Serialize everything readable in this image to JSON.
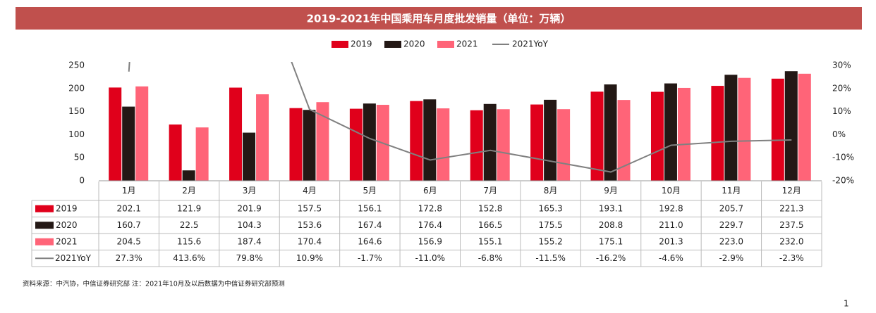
{
  "chart_data": {
    "type": "bar-line-table",
    "title": "2019-2021年中国乘用车月度批发销量（单位：万辆）",
    "categories": [
      "1月",
      "2月",
      "3月",
      "4月",
      "5月",
      "6月",
      "7月",
      "8月",
      "9月",
      "10月",
      "11月",
      "12月"
    ],
    "series": [
      {
        "name": "2019",
        "color": "#e0001b",
        "values": [
          202.1,
          121.9,
          201.9,
          157.5,
          156.1,
          172.8,
          152.8,
          165.3,
          193.1,
          192.8,
          205.7,
          221.3
        ],
        "value_labels": [
          "202.1",
          "121.9",
          "201.9",
          "157.5",
          "156.1",
          "172.8",
          "152.8",
          "165.3",
          "193.1",
          "192.8",
          "205.7",
          "221.3"
        ]
      },
      {
        "name": "2020",
        "color": "#231815",
        "values": [
          160.7,
          22.5,
          104.3,
          153.6,
          167.4,
          176.4,
          166.5,
          175.5,
          208.8,
          211,
          229.7,
          237.5
        ],
        "value_labels": [
          "160.7",
          "22.5",
          "104.3",
          "153.6",
          "167.4",
          "176.4",
          "166.5",
          "175.5",
          "208.8",
          "211.0",
          "229.7",
          "237.5"
        ]
      },
      {
        "name": "2021",
        "color": "#ff6478",
        "values": [
          204.5,
          115.6,
          187.4,
          170.4,
          164.6,
          156.9,
          155.1,
          155.2,
          175.1,
          201.3,
          223,
          232
        ],
        "value_labels": [
          "204.5",
          "115.6",
          "187.4",
          "170.4",
          "164.6",
          "156.9",
          "155.1",
          "155.2",
          "175.1",
          "201.3",
          "223.0",
          "232.0"
        ]
      },
      {
        "name": "2021YoY",
        "color": "#808080",
        "axis": "y2",
        "values": [
          27.3,
          413.6,
          79.8,
          10.9,
          -1.7,
          -11,
          -6.8,
          -11.5,
          -16.2,
          -4.6,
          -2.9,
          -2.3
        ],
        "value_labels": [
          "27.3%",
          "413.6%",
          "79.8%",
          "10.9%",
          "-1.7%",
          "-11.0%",
          "-6.8%",
          "-11.5%",
          "-16.2%",
          "-4.6%",
          "-2.9%",
          "-2.3%"
        ]
      }
    ],
    "ylim": [
      0,
      250
    ],
    "yticks": [
      0,
      50,
      100,
      150,
      200,
      250
    ],
    "y2lim": [
      -20,
      30
    ],
    "y2ticks": [
      {
        "value": -20,
        "label": "-20%"
      },
      {
        "value": -10,
        "label": "-10%"
      },
      {
        "value": 0,
        "label": "0%"
      },
      {
        "value": 10,
        "label": "10%"
      },
      {
        "value": 20,
        "label": "20%"
      },
      {
        "value": 30,
        "label": "30%"
      }
    ],
    "source": "资料来源：中汽协，中信证券研究部 注：2021年10月及以后数据为中信证券研究部预测",
    "page_number": "1"
  }
}
